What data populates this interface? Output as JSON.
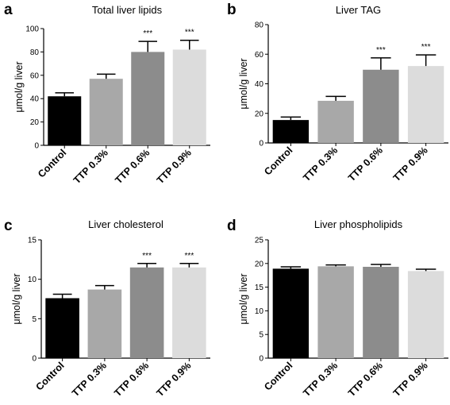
{
  "chart_data": [
    {
      "type": "bar",
      "panel": "a",
      "title": "Total liver lipids",
      "ylabel": "μmol/g liver",
      "xlabel": "",
      "categories": [
        "Control",
        "TTP 0.3%",
        "TTP 0.6%",
        "TTP 0.9%"
      ],
      "values": [
        42,
        57,
        80,
        82
      ],
      "errors": [
        3,
        4,
        9,
        8
      ],
      "significance": [
        "",
        "",
        "***",
        "***"
      ],
      "ylim": [
        0,
        100
      ],
      "yticks": [
        0,
        20,
        40,
        60,
        80,
        100
      ],
      "colors": [
        "#000000",
        "#a8a8a8",
        "#8c8c8c",
        "#dcdcdc"
      ],
      "grid": false
    },
    {
      "type": "bar",
      "panel": "b",
      "title": "Liver TAG",
      "ylabel": "μmol/g liver",
      "xlabel": "",
      "categories": [
        "Control",
        "TTP 0.3%",
        "TTP 0.6%",
        "TTP 0.9%"
      ],
      "values": [
        15.5,
        28.5,
        49.5,
        52
      ],
      "errors": [
        2,
        3,
        8,
        7.5
      ],
      "significance": [
        "",
        "",
        "***",
        "***"
      ],
      "ylim": [
        0,
        80
      ],
      "yticks": [
        0,
        20,
        40,
        60,
        80
      ],
      "colors": [
        "#000000",
        "#a8a8a8",
        "#8c8c8c",
        "#dcdcdc"
      ],
      "grid": false
    },
    {
      "type": "bar",
      "panel": "c",
      "title": "Liver cholesterol",
      "ylabel": "μmol/g liver",
      "xlabel": "",
      "categories": [
        "Control",
        "TTP 0.3%",
        "TTP 0.6%",
        "TTP 0.9%"
      ],
      "values": [
        7.6,
        8.7,
        11.5,
        11.5
      ],
      "errors": [
        0.5,
        0.5,
        0.5,
        0.5
      ],
      "significance": [
        "",
        "",
        "***",
        "***"
      ],
      "ylim": [
        0,
        15
      ],
      "yticks": [
        0,
        5,
        10,
        15
      ],
      "colors": [
        "#000000",
        "#a8a8a8",
        "#8c8c8c",
        "#dcdcdc"
      ],
      "grid": false
    },
    {
      "type": "bar",
      "panel": "d",
      "title": "Liver phospholipids",
      "ylabel": "μmol/g liver",
      "xlabel": "",
      "categories": [
        "Control",
        "TTP 0.3%",
        "TTP 0.6%",
        "TTP 0.9%"
      ],
      "values": [
        18.9,
        19.4,
        19.3,
        18.4
      ],
      "errors": [
        0.4,
        0.3,
        0.5,
        0.4
      ],
      "significance": [
        "",
        "",
        "",
        ""
      ],
      "ylim": [
        0,
        25
      ],
      "yticks": [
        0,
        5,
        10,
        15,
        20,
        25
      ],
      "colors": [
        "#000000",
        "#a8a8a8",
        "#8c8c8c",
        "#dcdcdc"
      ],
      "grid": false
    }
  ]
}
